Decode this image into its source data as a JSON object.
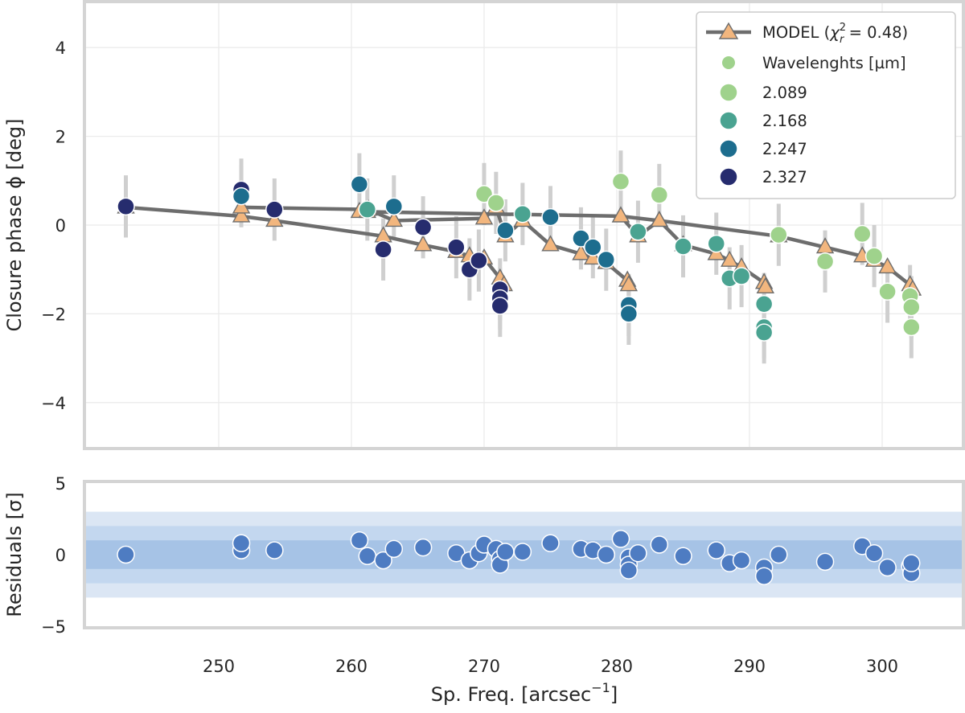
{
  "chart_data": [
    {
      "type": "scatter",
      "panel": "top",
      "ylabel": "Closure phase ϕ [deg]",
      "ylim": [
        -5,
        5
      ],
      "yticks": [
        "−4",
        "−2",
        "0",
        "2",
        "4"
      ],
      "ytick_values": [
        -4,
        -2,
        0,
        2,
        4
      ],
      "xlim": [
        240,
        306
      ],
      "grid": true,
      "legend_position": "top-right",
      "legend": {
        "model_label": "MODEL (",
        "model_chi_sym": "χ",
        "model_chi_sup": "2",
        "model_chi_sub": "r",
        "model_chi_value": " = 0.48)",
        "wavelength_title": "Wavelenghts [µm]",
        "entries": [
          "2.089",
          "2.168",
          "2.247",
          "2.327"
        ]
      },
      "colors": {
        "2.089": "#9fd28c",
        "2.168": "#4aa391",
        "2.247": "#1d6d8e",
        "2.327": "#262c6e",
        "wavelength_title_marker": "#9fd28c",
        "model_line": "#6d6d6d",
        "model_marker": "#f2b67e",
        "errorbar": "#cfcfcf"
      },
      "model_series": [
        {
          "x": [
            243,
            251.7,
            254.2,
            262.4,
            265.4,
            267.9,
            268.9,
            270,
            271.2,
            271.5
          ],
          "y": [
            0.4,
            0.2,
            0.1,
            -0.25,
            -0.45,
            -0.6,
            -0.7,
            -0.75,
            -1.2,
            -1.35
          ]
        },
        {
          "x": [
            251.7,
            261.3,
            263.2,
            270,
            270.9,
            271.6,
            272.9,
            275,
            277.3,
            278.2,
            279.2,
            280.8,
            280.9
          ],
          "y": [
            0.4,
            0.35,
            0.1,
            0.15,
            0.4,
            -0.25,
            0.1,
            -0.45,
            -0.65,
            -0.75,
            -0.85,
            -1.25,
            -1.35
          ]
        },
        {
          "x": [
            260.6,
            261.2,
            280.3,
            281.6,
            283.2,
            285,
            287.5,
            288.5,
            289.4,
            291.1,
            291.2
          ],
          "y": [
            0.3,
            0.3,
            0.2,
            -0.25,
            0.1,
            -0.45,
            -0.65,
            -0.8,
            -0.95,
            -1.3,
            -1.4
          ]
        },
        {
          "x": [
            280.3,
            283.2,
            292.2,
            295.7,
            298.5,
            299.4,
            300.4,
            302.1,
            302.3
          ],
          "y": [
            0.2,
            0.1,
            -0.25,
            -0.5,
            -0.7,
            -0.8,
            -0.95,
            -1.35,
            -1.45
          ]
        }
      ],
      "observations": [
        {
          "x": 243,
          "y": 0.42,
          "wl": "2.327",
          "err": 0.7
        },
        {
          "x": 251.7,
          "y": 0.8,
          "wl": "2.327",
          "err": 0.7
        },
        {
          "x": 251.7,
          "y": 0.65,
          "wl": "2.247",
          "err": 0.7
        },
        {
          "x": 254.2,
          "y": 0.35,
          "wl": "2.327",
          "err": 0.7
        },
        {
          "x": 260.6,
          "y": 0.92,
          "wl": "2.247",
          "err": 0.7
        },
        {
          "x": 261.2,
          "y": 0.35,
          "wl": "2.168",
          "err": 0.7
        },
        {
          "x": 262.4,
          "y": -0.55,
          "wl": "2.327",
          "err": 0.7
        },
        {
          "x": 263.2,
          "y": 0.42,
          "wl": "2.247",
          "err": 0.7
        },
        {
          "x": 265.4,
          "y": -0.05,
          "wl": "2.327",
          "err": 0.7
        },
        {
          "x": 267.9,
          "y": -0.5,
          "wl": "2.327",
          "err": 0.7
        },
        {
          "x": 268.9,
          "y": -1.0,
          "wl": "2.327",
          "err": 0.7
        },
        {
          "x": 269.6,
          "y": -0.8,
          "wl": "2.327",
          "err": 0.7
        },
        {
          "x": 270,
          "y": 0.7,
          "wl": "2.089",
          "err": 0.7
        },
        {
          "x": 270.9,
          "y": 0.5,
          "wl": "2.089",
          "err": 0.7
        },
        {
          "x": 271.2,
          "y": -1.45,
          "wl": "2.327",
          "err": 0.7
        },
        {
          "x": 271.2,
          "y": -1.65,
          "wl": "2.327",
          "err": 0.7
        },
        {
          "x": 271.2,
          "y": -1.82,
          "wl": "2.327",
          "err": 0.7
        },
        {
          "x": 271.6,
          "y": -0.12,
          "wl": "2.247",
          "err": 0.7
        },
        {
          "x": 272.9,
          "y": 0.25,
          "wl": "2.168",
          "err": 0.7
        },
        {
          "x": 275,
          "y": 0.18,
          "wl": "2.247",
          "err": 0.7
        },
        {
          "x": 277.3,
          "y": -0.3,
          "wl": "2.247",
          "err": 0.7
        },
        {
          "x": 278.2,
          "y": -0.5,
          "wl": "2.247",
          "err": 0.7
        },
        {
          "x": 279.2,
          "y": -0.78,
          "wl": "2.247",
          "err": 0.7
        },
        {
          "x": 280.3,
          "y": 0.98,
          "wl": "2.089",
          "err": 0.7
        },
        {
          "x": 280.9,
          "y": -1.8,
          "wl": "2.247",
          "err": 0.7
        },
        {
          "x": 280.9,
          "y": -2.0,
          "wl": "2.247",
          "err": 0.7
        },
        {
          "x": 281.6,
          "y": -0.15,
          "wl": "2.168",
          "err": 0.7
        },
        {
          "x": 283.2,
          "y": 0.68,
          "wl": "2.089",
          "err": 0.7
        },
        {
          "x": 285,
          "y": -0.48,
          "wl": "2.168",
          "err": 0.7
        },
        {
          "x": 287.5,
          "y": -0.42,
          "wl": "2.168",
          "err": 0.7
        },
        {
          "x": 288.5,
          "y": -1.2,
          "wl": "2.168",
          "err": 0.7
        },
        {
          "x": 289.4,
          "y": -1.15,
          "wl": "2.168",
          "err": 0.7
        },
        {
          "x": 291.1,
          "y": -1.78,
          "wl": "2.168",
          "err": 0.7
        },
        {
          "x": 291.1,
          "y": -2.3,
          "wl": "2.168",
          "err": 0.7
        },
        {
          "x": 291.1,
          "y": -2.42,
          "wl": "2.168",
          "err": 0.7
        },
        {
          "x": 292.2,
          "y": -0.22,
          "wl": "2.089",
          "err": 0.7
        },
        {
          "x": 295.7,
          "y": -0.82,
          "wl": "2.089",
          "err": 0.7
        },
        {
          "x": 298.5,
          "y": -0.2,
          "wl": "2.089",
          "err": 0.7
        },
        {
          "x": 299.4,
          "y": -0.7,
          "wl": "2.089",
          "err": 0.7
        },
        {
          "x": 300.4,
          "y": -1.5,
          "wl": "2.089",
          "err": 0.7
        },
        {
          "x": 302.1,
          "y": -1.6,
          "wl": "2.089",
          "err": 0.7
        },
        {
          "x": 302.2,
          "y": -1.85,
          "wl": "2.089",
          "err": 0.7
        },
        {
          "x": 302.2,
          "y": -2.3,
          "wl": "2.089",
          "err": 0.7
        }
      ]
    },
    {
      "type": "scatter",
      "panel": "bottom",
      "ylabel": "Residuals [σ]",
      "xlabel": "Sp. Freq. [arcsec",
      "xlabel_sup": "−1",
      "xlabel_end": "]",
      "ylim": [
        -5,
        5
      ],
      "yticks": [
        "−5",
        "0",
        "5"
      ],
      "ytick_values": [
        -5,
        0,
        5
      ],
      "xlim": [
        240,
        306
      ],
      "xticks": [
        "250",
        "260",
        "270",
        "280",
        "290",
        "300"
      ],
      "xtick_values": [
        250,
        260,
        270,
        280,
        290,
        300
      ],
      "bands": [
        {
          "lo": -3,
          "hi": 3,
          "color": "#dbe6f4"
        },
        {
          "lo": -2,
          "hi": 2,
          "color": "#c3d7ef"
        },
        {
          "lo": -1,
          "hi": 1,
          "color": "#a6c3e6"
        }
      ],
      "point_color": "#4e7cc2",
      "residuals": [
        {
          "x": 243,
          "y": 0.0
        },
        {
          "x": 251.7,
          "y": 0.3
        },
        {
          "x": 251.7,
          "y": 0.8
        },
        {
          "x": 254.2,
          "y": 0.3
        },
        {
          "x": 260.6,
          "y": 1.0
        },
        {
          "x": 261.2,
          "y": -0.1
        },
        {
          "x": 262.4,
          "y": -0.4
        },
        {
          "x": 263.2,
          "y": 0.4
        },
        {
          "x": 265.4,
          "y": 0.5
        },
        {
          "x": 267.9,
          "y": 0.1
        },
        {
          "x": 268.9,
          "y": -0.4
        },
        {
          "x": 269.6,
          "y": 0.1
        },
        {
          "x": 270,
          "y": 0.7
        },
        {
          "x": 270.9,
          "y": 0.4
        },
        {
          "x": 271.2,
          "y": -0.3
        },
        {
          "x": 271.2,
          "y": -0.7
        },
        {
          "x": 271.6,
          "y": 0.2
        },
        {
          "x": 272.9,
          "y": 0.2
        },
        {
          "x": 275,
          "y": 0.8
        },
        {
          "x": 277.3,
          "y": 0.4
        },
        {
          "x": 278.2,
          "y": 0.3
        },
        {
          "x": 279.2,
          "y": 0.0
        },
        {
          "x": 280.3,
          "y": 1.1
        },
        {
          "x": 280.9,
          "y": -0.2
        },
        {
          "x": 280.9,
          "y": -0.7
        },
        {
          "x": 280.9,
          "y": -1.1
        },
        {
          "x": 281.6,
          "y": 0.1
        },
        {
          "x": 283.2,
          "y": 0.7
        },
        {
          "x": 285,
          "y": -0.1
        },
        {
          "x": 287.5,
          "y": 0.3
        },
        {
          "x": 288.5,
          "y": -0.6
        },
        {
          "x": 289.4,
          "y": -0.4
        },
        {
          "x": 291.1,
          "y": -0.9
        },
        {
          "x": 291.1,
          "y": -1.5
        },
        {
          "x": 292.2,
          "y": 0.0
        },
        {
          "x": 295.7,
          "y": -0.5
        },
        {
          "x": 298.5,
          "y": 0.6
        },
        {
          "x": 299.4,
          "y": 0.1
        },
        {
          "x": 300.4,
          "y": -0.9
        },
        {
          "x": 302.1,
          "y": -0.8
        },
        {
          "x": 302.2,
          "y": -1.3
        },
        {
          "x": 302.2,
          "y": -0.6
        }
      ]
    }
  ]
}
